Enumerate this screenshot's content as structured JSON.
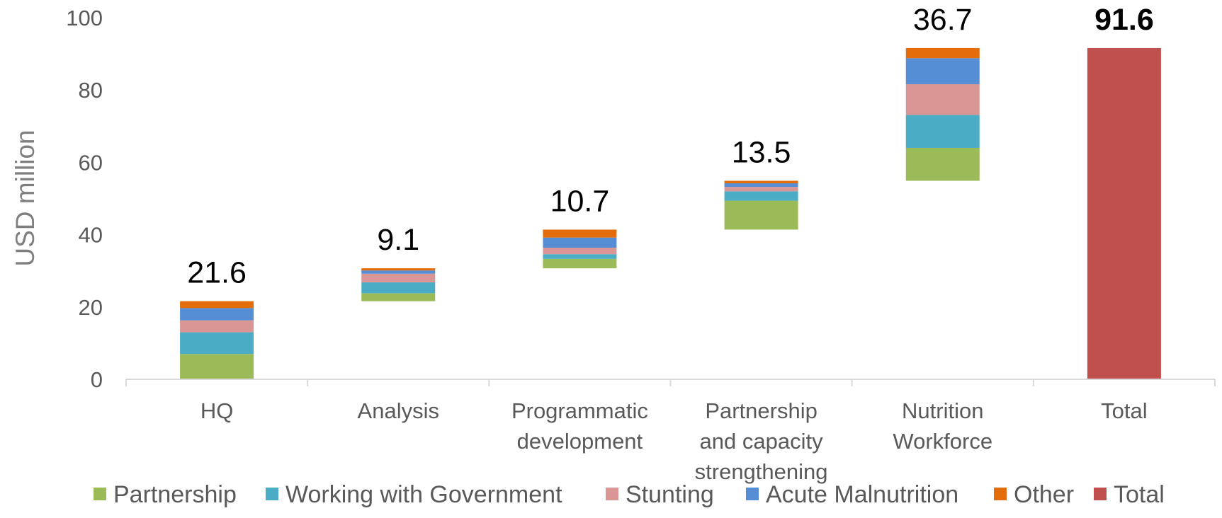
{
  "chart_data": {
    "type": "bar",
    "subtype": "waterfall-stacked",
    "ylabel": "USD million",
    "xlabel": "",
    "ylim": [
      0,
      100
    ],
    "yticks": [
      0,
      20,
      40,
      60,
      80,
      100
    ],
    "grid": false,
    "legend_position": "bottom",
    "categories": [
      [
        "HQ"
      ],
      [
        "Analysis"
      ],
      [
        "Programmatic",
        "development"
      ],
      [
        "Partnership",
        "and capacity",
        "strengthening"
      ],
      [
        "Nutrition",
        "Workforce"
      ],
      [
        "Total"
      ]
    ],
    "bases": [
      0,
      21.6,
      30.7,
      41.4,
      54.9,
      0
    ],
    "series": [
      {
        "name": "Partnership",
        "color": "#9bbb59",
        "values": [
          7.0,
          2.2,
          2.6,
          8.0,
          9.1,
          0
        ]
      },
      {
        "name": "Working with Government",
        "color": "#4bacc6",
        "values": [
          6.0,
          3.0,
          1.3,
          2.6,
          9.1,
          0
        ]
      },
      {
        "name": "Stunting",
        "color": "#d99694",
        "values": [
          3.3,
          2.4,
          1.8,
          1.2,
          8.5,
          0
        ]
      },
      {
        "name": "Acute Malnutrition",
        "color": "#558ed5",
        "values": [
          3.4,
          0.9,
          2.8,
          1.0,
          7.2,
          0
        ]
      },
      {
        "name": "Other",
        "color": "#e46c0a",
        "values": [
          1.9,
          0.6,
          2.2,
          0.7,
          2.8,
          0
        ]
      },
      {
        "name": "Total",
        "color": "#c0504d",
        "values": [
          0,
          0,
          0,
          0,
          0,
          91.6
        ]
      }
    ],
    "totals": [
      "21.6",
      "9.1",
      "10.7",
      "13.5",
      "36.7",
      "91.6"
    ],
    "bold_totals": [
      false,
      false,
      false,
      false,
      false,
      true
    ]
  }
}
